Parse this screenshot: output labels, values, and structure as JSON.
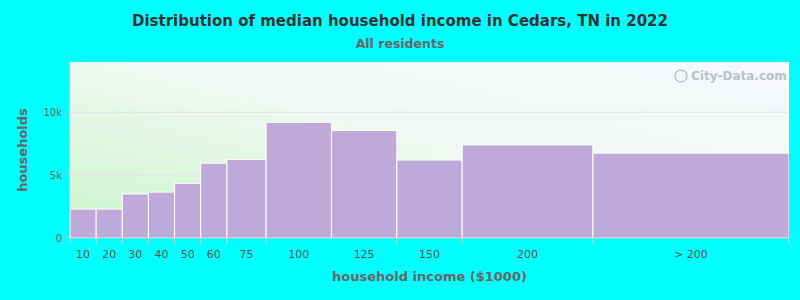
{
  "chart_data": {
    "type": "histogram",
    "title": "Distribution of median household income in Cedars, TN in 2022",
    "subtitle": "All residents",
    "x_label": "household income ($1000)",
    "y_label": "households",
    "annotations": [
      "City-Data.com"
    ],
    "categories": [
      "10",
      "20",
      "30",
      "40",
      "50",
      "60",
      "75",
      "100",
      "125",
      "150",
      "200",
      "> 200"
    ],
    "bins": [
      0,
      10,
      20,
      30,
      40,
      50,
      60,
      75,
      100,
      125,
      150,
      200,
      275
    ],
    "values": [
      2300,
      2300,
      3500,
      3650,
      4350,
      5950,
      6250,
      9200,
      8550,
      6200,
      7400,
      6750
    ],
    "color": "#bfa9d9",
    "xlim": [
      0,
      275
    ],
    "ylim": [
      0,
      14000
    ],
    "yticks": [
      0,
      {
        "value": 5000,
        "label": "5k"
      },
      {
        "value": 10000,
        "label": "10k"
      }
    ],
    "grid": true
  }
}
